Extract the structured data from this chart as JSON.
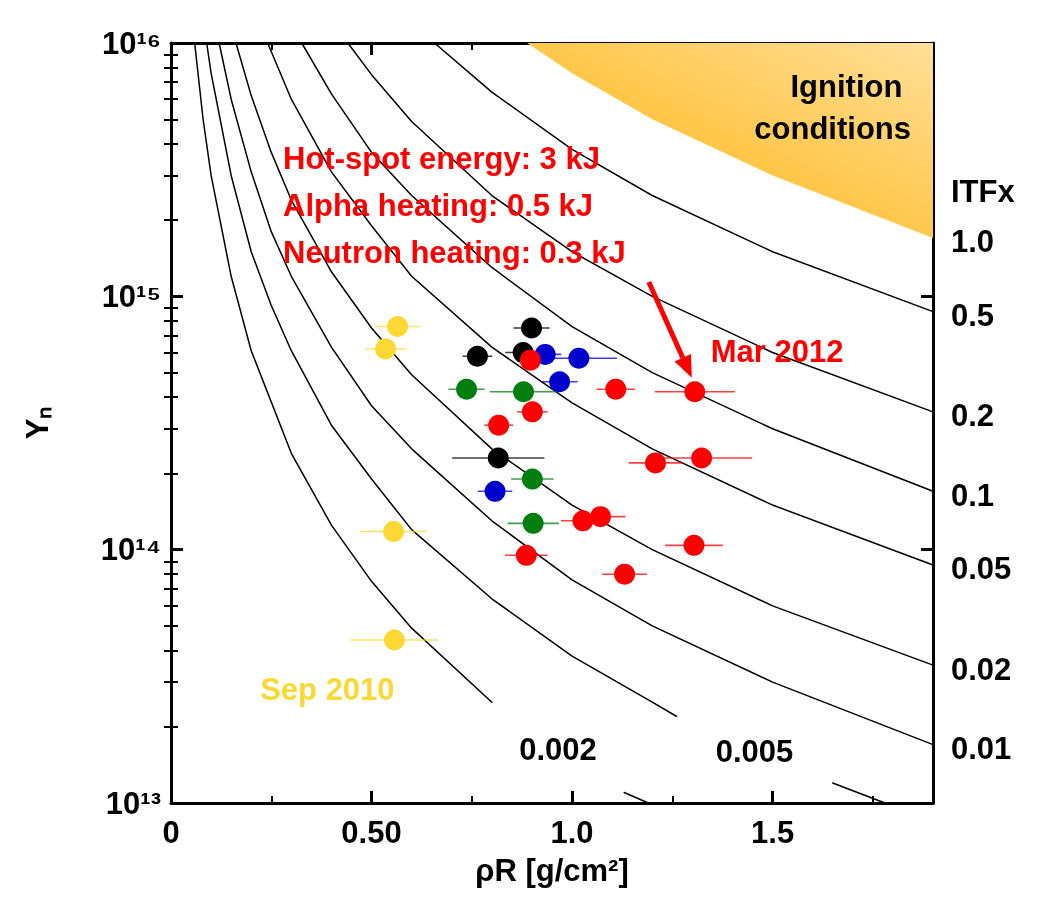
{
  "chart_data": {
    "type": "scatter",
    "xlabel": "ρR [g/cm²]",
    "ylabel": "Yₙ",
    "legend_title": "ITFx",
    "log": "y",
    "marker": "circle",
    "legend": "right",
    "xlim": [
      0,
      1.9
    ],
    "xticks": [
      0,
      {
        "value": 0.25,
        "label": null
      },
      {
        "value": 0.5,
        "label": "0.50"
      },
      {
        "value": 0.75,
        "label": null
      },
      {
        "value": 1.0,
        "label": "1.0"
      },
      {
        "value": 1.25,
        "label": null
      },
      1.5,
      {
        "value": 1.75,
        "label": null
      }
    ],
    "ylim": [
      10000000000000.0,
      1e+16
    ],
    "yticks": [
      {
        "value": 10000000000000.0,
        "label": "10¹³"
      },
      {
        "value": 20000000000000.0,
        "label": null
      },
      {
        "value": 30000000000000.0,
        "label": null
      },
      {
        "value": 40000000000000.0,
        "label": null
      },
      {
        "value": 50000000000000.0,
        "label": null
      },
      {
        "value": 60000000000000.0,
        "label": null
      },
      {
        "value": 70000000000000.0,
        "label": null
      },
      {
        "value": 80000000000000.0,
        "label": null
      },
      {
        "value": 90000000000000.0,
        "label": null
      },
      {
        "value": 100000000000000.0,
        "label": "10¹⁴"
      },
      {
        "value": 200000000000000.0,
        "label": null
      },
      {
        "value": 300000000000000.0,
        "label": null
      },
      {
        "value": 400000000000000.0,
        "label": null
      },
      {
        "value": 500000000000000.0,
        "label": null
      },
      {
        "value": 600000000000000.0,
        "label": null
      },
      {
        "value": 700000000000000.0,
        "label": null
      },
      {
        "value": 800000000000000.0,
        "label": null
      },
      {
        "value": 900000000000000.0,
        "label": null
      },
      {
        "value": 1000000000000000.0,
        "label": "10¹⁵"
      },
      {
        "value": 2000000000000000.0,
        "label": null
      },
      {
        "value": 3000000000000000.0,
        "label": null
      },
      {
        "value": 4000000000000000.0,
        "label": null
      },
      {
        "value": 5000000000000000.0,
        "label": null
      },
      {
        "value": 6000000000000000.0,
        "label": null
      },
      {
        "value": 7000000000000000.0,
        "label": null
      },
      {
        "value": 8000000000000000.0,
        "label": null
      },
      {
        "value": 9000000000000000.0,
        "label": null
      },
      {
        "value": 1e+16,
        "label": "10¹⁶"
      }
    ],
    "annotations": [
      "Hot-spot energy: 3 kJ",
      "Alpha heating: 0.5 kJ",
      "Neutron heating: 0.3 kJ",
      {
        "text": "Mar 2012",
        "x": 1.306,
        "y": 420000000000000.0
      },
      {
        "text": "1.0",
        "x": 1.9,
        "y": 1700000000000000.0
      }
    ],
    "series": [
      {
        "type": "area",
        "name": "Ignition conditions",
        "color": "#ffb000",
        "marker": "none",
        "x": [
          0.888,
          1.0,
          1.2,
          1.5,
          1.9,
          1.9
        ],
        "values": [
          1e+16,
          7600000000000000.0,
          5000000000000000.0,
          3000000000000000.0,
          1700000000000000.0,
          1e+16
        ]
      },
      {
        "type": "line",
        "name": "0.5",
        "color": "#000000",
        "marker": "none",
        "x": [
          0.657,
          0.8,
          1.0,
          1.2,
          1.5,
          1.9
        ],
        "values": [
          1e+16,
          6400000000000000.0,
          3800000000000000.0,
          2500000000000000.0,
          1500000000000000.0,
          870000000000000.0
        ]
      },
      {
        "type": "line",
        "name": "0.2",
        "color": "#000000",
        "marker": "none",
        "x": [
          0.441,
          0.5,
          0.6,
          0.8,
          1.0,
          1.2,
          1.5,
          1.9
        ],
        "values": [
          1e+16,
          7500000000000000.0,
          4900000000000000.0,
          2500000000000000.0,
          1500000000000000.0,
          1000000000000000.0,
          600000000000000.0,
          350000000000000.0
        ]
      },
      {
        "type": "line",
        "name": "0.1",
        "color": "#000000",
        "marker": "none",
        "x": [
          0.326,
          0.4,
          0.5,
          0.6,
          0.8,
          1.0,
          1.2,
          1.5,
          1.9
        ],
        "values": [
          1e+16,
          6300000000000000.0,
          3700000000000000.0,
          2500000000000000.0,
          1300000000000000.0,
          760000000000000.0,
          500000000000000.0,
          300000000000000.0,
          170000000000000.0
        ]
      },
      {
        "type": "line",
        "name": "0.05",
        "color": "#000000",
        "marker": "none",
        "x": [
          0.241,
          0.3,
          0.4,
          0.5,
          0.6,
          0.8,
          1.0,
          1.2,
          1.5,
          1.9
        ],
        "values": [
          1e+16,
          6000000000000000.0,
          3100000000000000.0,
          1900000000000000.0,
          1200000000000000.0,
          630000000000000.0,
          380000000000000.0,
          250000000000000.0,
          150000000000000.0,
          87000000000000.0
        ]
      },
      {
        "type": "line",
        "name": "0.02",
        "color": "#000000",
        "marker": "none",
        "x": [
          0.162,
          0.2,
          0.25,
          0.3,
          0.4,
          0.5,
          0.6,
          0.8,
          1.0,
          1.2,
          1.5,
          1.9
        ],
        "values": [
          1e+16,
          6200000000000000.0,
          3700000000000000.0,
          2400000000000000.0,
          1250000000000000.0,
          750000000000000.0,
          490000000000000.0,
          250000000000000.0,
          150000000000000.0,
          100000000000000.0,
          60000000000000.0,
          35000000000000.0
        ]
      },
      {
        "type": "line",
        "name": "0.01",
        "color": "#000000",
        "marker": "none",
        "x": [
          0.12,
          0.15,
          0.2,
          0.25,
          0.3,
          0.4,
          0.5,
          0.6,
          0.8,
          1.0,
          1.2,
          1.5,
          1.9
        ],
        "values": [
          1e+16,
          6000000000000000.0,
          3100000000000000.0,
          1800000000000000.0,
          1200000000000000.0,
          630000000000000.0,
          370000000000000.0,
          250000000000000.0,
          130000000000000.0,
          76000000000000.0,
          50000000000000.0,
          30000000000000.0,
          17000000000000.0
        ]
      },
      {
        "type": "line",
        "name": "0.005",
        "color": "#000000",
        "marker": "none",
        "x": [
          0.089,
          0.1,
          0.15,
          0.2,
          0.25,
          0.3,
          0.4,
          0.5,
          0.6,
          0.8,
          1.0,
          1.2,
          1.26,
          1.45,
          1.65,
          1.78
        ],
        "values": [
          1e+16,
          7600000000000000.0,
          3000000000000000.0,
          1500000000000000.0,
          920000000000000.0,
          610000000000000.0,
          310000000000000.0,
          190000000000000.0,
          120000000000000.0,
          64000000000000.0,
          38000000000000.0,
          25000000000000.0,
          22000000000000.0,
          null,
          12000000000000.0,
          10000000000000.0
        ]
      },
      {
        "type": "line",
        "name": "0.002",
        "color": "#000000",
        "marker": "none",
        "x": [
          0.059,
          0.08,
          0.1,
          0.15,
          0.2,
          0.3,
          0.4,
          0.5,
          0.6,
          0.8,
          0.95,
          1.13,
          1.19
        ],
        "values": [
          1e+16,
          5000000000000000.0,
          3000000000000000.0,
          1200000000000000.0,
          610000000000000.0,
          240000000000000.0,
          125000000000000.0,
          75000000000000.0,
          49000000000000.0,
          25000000000000.0,
          null,
          11000000000000.0,
          10000000000000.0
        ]
      },
      {
        "name": "Sep 2010",
        "color": "#fdd835",
        "x": [
          0.565,
          0.535,
          0.555,
          0.557
        ],
        "values": [
          760000000000000.0,
          620000000000000.0,
          118000000000000.0,
          44000000000000.0
        ],
        "xerrors": [
          0.055,
          0.052,
          0.083,
          0.11
        ]
      },
      {
        "color": "#000000",
        "x": [
          0.899,
          0.764,
          0.878,
          0.816
        ],
        "values": [
          750000000000000.0,
          580000000000000.0,
          600000000000000.0,
          230000000000000.0
        ],
        "xerrors": [
          0.045,
          0.037,
          0.045,
          0.115
        ]
      },
      {
        "color": "#0000cc",
        "x": [
          0.933,
          1.017,
          0.969,
          0.808
        ],
        "values": [
          590000000000000.0,
          570000000000000.0,
          460000000000000.0,
          170000000000000.0
        ],
        "xerrors": [
          0.04,
          0.095,
          0.045,
          0.043
        ]
      },
      {
        "color": "#007f0e",
        "x": [
          0.737,
          0.879,
          0.901,
          0.903
        ],
        "values": [
          430000000000000.0,
          420000000000000.0,
          190000000000000.0,
          127000000000000.0
        ],
        "xerrors": [
          0.045,
          0.084,
          0.053,
          0.064
        ]
      },
      {
        "color": "#ff0000",
        "x": [
          0.896,
          1.109,
          1.306,
          0.901,
          0.817,
          1.208,
          1.323,
          1.027,
          1.071,
          1.304,
          0.886,
          1.131
        ],
        "values": [
          560000000000000.0,
          430000000000000.0,
          420000000000000.0,
          350000000000000.0,
          310000000000000.0,
          220000000000000.0,
          230000000000000.0,
          130000000000000.0,
          135000000000000.0,
          104000000000000.0,
          95000000000000.0,
          80000000000000.0
        ],
        "xerrors": [
          0.03,
          0.048,
          0.1,
          0.038,
          0.036,
          0.067,
          0.126,
          0.055,
          0.062,
          0.072,
          0.053,
          0.056
        ]
      }
    ]
  }
}
